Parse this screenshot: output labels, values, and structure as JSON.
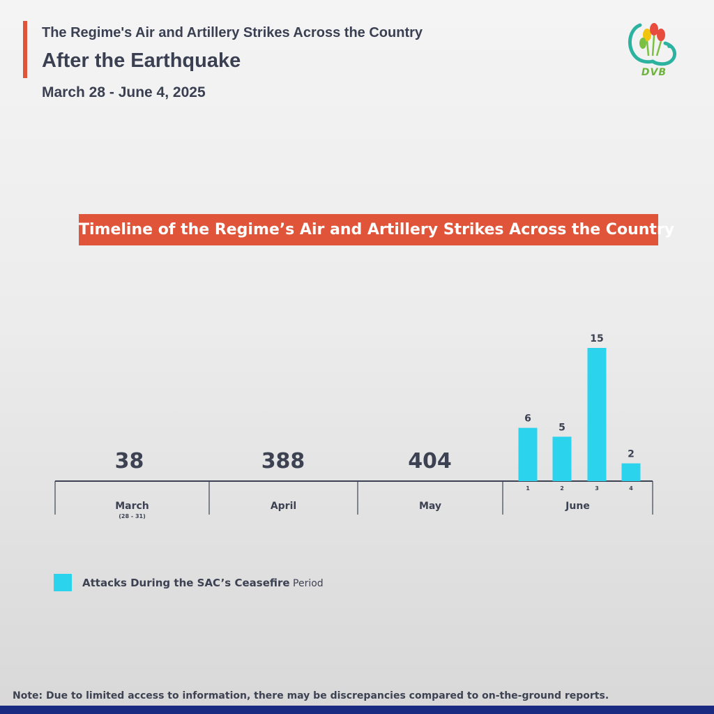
{
  "header": {
    "line1": "The Regime's Air and Artillery Strikes Across the Country",
    "line2": "After the Earthquake",
    "date_range": "March 28 - June 4, 2025"
  },
  "logo": {
    "text": "DVB"
  },
  "banner": {
    "title": "Timeline of the Regime’s Air and Artillery Strikes Across the Country"
  },
  "legend": {
    "label_main": "Attacks During the SAC’s Ceasefire",
    "label_suffix": " Period"
  },
  "note": "Note: Due to limited access to information, there may be discrepancies compared to on-the-ground reports.",
  "colors": {
    "accent": "#e0553a",
    "bar": "#2cd3ed",
    "text": "#3c4252",
    "footer": "#1a2a80"
  },
  "chart_data": {
    "type": "bar",
    "title": "Timeline of the Regime’s Air and Artillery Strikes Across the Country",
    "xlabel": "",
    "ylabel": "",
    "periods": [
      {
        "label": "March",
        "sublabel": "(28 - 31)",
        "total": 38
      },
      {
        "label": "April",
        "sublabel": "",
        "total": 388
      },
      {
        "label": "May",
        "sublabel": "",
        "total": 404
      },
      {
        "label": "June",
        "sublabel": "",
        "total": null
      }
    ],
    "series": [
      {
        "name": "Attacks During the SAC’s Ceasefire Period",
        "period": "June",
        "categories": [
          "1",
          "2",
          "3",
          "4"
        ],
        "values": [
          6,
          5,
          15,
          2
        ]
      }
    ],
    "ylim": [
      0,
      15
    ],
    "grid": false,
    "legend_position": "bottom-left"
  }
}
